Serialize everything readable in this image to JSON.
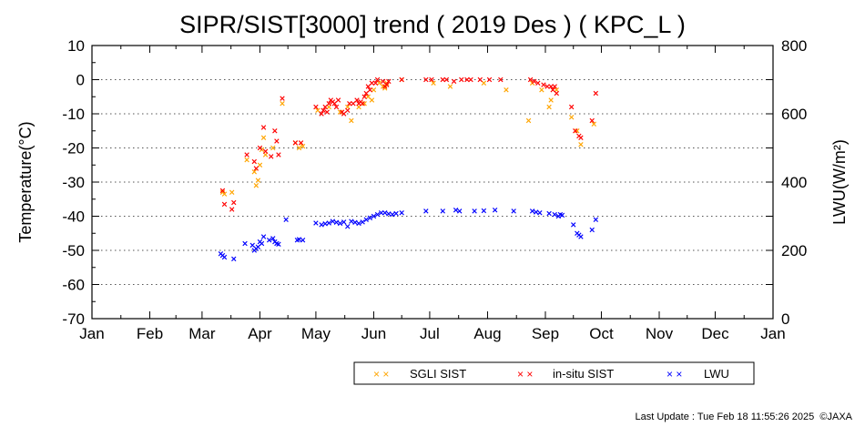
{
  "footer": {
    "prefix": "Last Update : ",
    "timestamp": "Tue Feb 18 11:55:26 2025",
    "credit": "©JAXA"
  },
  "chart_data": {
    "type": "scatter",
    "title": "SIPR/SIST[3000] trend ( 2019 Des ) ( KPC_L )",
    "ylabel": "Temperature(°C)",
    "ylabel_right": "LWU(W/m²)",
    "xlabel": "",
    "x_ticklabels": [
      "Jan",
      "Feb",
      "Mar",
      "Apr",
      "May",
      "Jun",
      "Jul",
      "Aug",
      "Sep",
      "Oct",
      "Nov",
      "Dec",
      "Jan"
    ],
    "ylim": [
      -70,
      10
    ],
    "yticks": [
      10,
      0,
      -10,
      -20,
      -30,
      -40,
      -50,
      -60,
      -70
    ],
    "ylim_right": [
      0,
      800
    ],
    "yticks_right": [
      800,
      600,
      400,
      200,
      0
    ],
    "grid": "dotted horizontal",
    "legend_position": "bottom-center",
    "colors": {
      "sgli": "#ffa500",
      "insitu": "#ff0000",
      "lwu": "#0000ff"
    },
    "series": [
      {
        "name": "SGLI SIST",
        "marker": "×",
        "color": "#ffa500",
        "axis": "left",
        "points": [
          [
            "2019-03-12",
            -33
          ],
          [
            "2019-03-13",
            -33.5
          ],
          [
            "2019-03-17",
            -33
          ],
          [
            "2019-03-25",
            -23.5
          ],
          [
            "2019-03-29",
            -27
          ],
          [
            "2019-03-30",
            -31
          ],
          [
            "2019-03-31",
            -29.5
          ],
          [
            "2019-04-01",
            -25
          ],
          [
            "2019-04-02",
            -20.5
          ],
          [
            "2019-04-03",
            -17
          ],
          [
            "2019-04-04",
            -22
          ],
          [
            "2019-04-08",
            -20
          ],
          [
            "2019-04-13",
            -7
          ],
          [
            "2019-04-20",
            -18.5
          ],
          [
            "2019-04-22",
            -20
          ],
          [
            "2019-04-24",
            -19.5
          ],
          [
            "2019-05-02",
            -9
          ],
          [
            "2019-05-08",
            -8
          ],
          [
            "2019-05-14",
            -9.5
          ],
          [
            "2019-05-18",
            -8
          ],
          [
            "2019-05-20",
            -12
          ],
          [
            "2019-05-24",
            -8
          ],
          [
            "2019-05-27",
            -7
          ],
          [
            "2019-05-29",
            -5
          ],
          [
            "2019-05-31",
            -6
          ],
          [
            "2019-06-01",
            -3
          ],
          [
            "2019-06-04",
            -1
          ],
          [
            "2019-06-06",
            -2
          ],
          [
            "2019-06-07",
            -2.5
          ],
          [
            "2019-06-08",
            -1
          ],
          [
            "2019-06-16",
            0
          ],
          [
            "2019-07-03",
            -1
          ],
          [
            "2019-07-12",
            -2
          ],
          [
            "2019-07-30",
            -1
          ],
          [
            "2019-08-11",
            -3
          ],
          [
            "2019-08-23",
            -12
          ],
          [
            "2019-08-25",
            -1
          ],
          [
            "2019-08-30",
            -3
          ],
          [
            "2019-09-03",
            -8
          ],
          [
            "2019-09-04",
            -6
          ],
          [
            "2019-09-07",
            -3
          ],
          [
            "2019-09-15",
            -11
          ],
          [
            "2019-09-18",
            -15
          ],
          [
            "2019-09-20",
            -19
          ],
          [
            "2019-09-27",
            -13
          ]
        ]
      },
      {
        "name": "in-situ SIST",
        "marker": "×",
        "color": "#ff0000",
        "axis": "left",
        "points": [
          [
            "2019-03-12",
            -32.5
          ],
          [
            "2019-03-13",
            -36.5
          ],
          [
            "2019-03-17",
            -38
          ],
          [
            "2019-03-18",
            -36
          ],
          [
            "2019-03-25",
            -22
          ],
          [
            "2019-03-29",
            -24
          ],
          [
            "2019-03-30",
            -26
          ],
          [
            "2019-04-01",
            -20
          ],
          [
            "2019-04-03",
            -14
          ],
          [
            "2019-04-04",
            -21
          ],
          [
            "2019-04-07",
            -22.5
          ],
          [
            "2019-04-09",
            -15
          ],
          [
            "2019-04-10",
            -18
          ],
          [
            "2019-04-11",
            -22
          ],
          [
            "2019-04-13",
            -5.5
          ],
          [
            "2019-04-20",
            -18.5
          ],
          [
            "2019-04-23",
            -18.5
          ],
          [
            "2019-05-01",
            -8
          ],
          [
            "2019-05-04",
            -10
          ],
          [
            "2019-05-05",
            -9
          ],
          [
            "2019-05-06",
            -8
          ],
          [
            "2019-05-07",
            -9.5
          ],
          [
            "2019-05-08",
            -7
          ],
          [
            "2019-05-09",
            -6
          ],
          [
            "2019-05-10",
            -6.5
          ],
          [
            "2019-05-11",
            -7
          ],
          [
            "2019-05-12",
            -8
          ],
          [
            "2019-05-13",
            -6
          ],
          [
            "2019-05-15",
            -9.5
          ],
          [
            "2019-05-16",
            -10
          ],
          [
            "2019-05-18",
            -9
          ],
          [
            "2019-05-19",
            -7
          ],
          [
            "2019-05-21",
            -7
          ],
          [
            "2019-05-23",
            -6
          ],
          [
            "2019-05-24",
            -7
          ],
          [
            "2019-05-25",
            -6.5
          ],
          [
            "2019-05-26",
            -7
          ],
          [
            "2019-05-27",
            -5
          ],
          [
            "2019-05-28",
            -4
          ],
          [
            "2019-05-29",
            -2
          ],
          [
            "2019-05-30",
            -3
          ],
          [
            "2019-05-31",
            -1
          ],
          [
            "2019-06-02",
            -1
          ],
          [
            "2019-06-03",
            0
          ],
          [
            "2019-06-06",
            -0.5
          ],
          [
            "2019-06-07",
            -2
          ],
          [
            "2019-06-08",
            -1.5
          ],
          [
            "2019-06-09",
            -0.5
          ],
          [
            "2019-06-16",
            0
          ],
          [
            "2019-06-29",
            0
          ],
          [
            "2019-07-02",
            0
          ],
          [
            "2019-07-08",
            0
          ],
          [
            "2019-07-10",
            0
          ],
          [
            "2019-07-14",
            -0.5
          ],
          [
            "2019-07-18",
            0
          ],
          [
            "2019-07-21",
            0
          ],
          [
            "2019-07-23",
            0
          ],
          [
            "2019-07-28",
            0
          ],
          [
            "2019-08-02",
            0
          ],
          [
            "2019-08-08",
            0
          ],
          [
            "2019-08-24",
            0
          ],
          [
            "2019-08-26",
            -0.5
          ],
          [
            "2019-08-28",
            -1
          ],
          [
            "2019-08-31",
            -1.5
          ],
          [
            "2019-09-02",
            -2
          ],
          [
            "2019-09-04",
            -2
          ],
          [
            "2019-09-05",
            -3
          ],
          [
            "2019-09-06",
            -2
          ],
          [
            "2019-09-07",
            -4
          ],
          [
            "2019-09-15",
            -8
          ],
          [
            "2019-09-17",
            -15
          ],
          [
            "2019-09-19",
            -16.5
          ],
          [
            "2019-09-20",
            -17
          ],
          [
            "2019-09-26",
            -12
          ],
          [
            "2019-09-28",
            -4
          ]
        ]
      },
      {
        "name": "LWU",
        "marker": "×",
        "color": "#0000ff",
        "axis": "right",
        "points": [
          [
            "2019-03-11",
            190
          ],
          [
            "2019-03-12",
            185
          ],
          [
            "2019-03-13",
            180
          ],
          [
            "2019-03-18",
            175
          ],
          [
            "2019-03-24",
            220
          ],
          [
            "2019-03-28",
            215
          ],
          [
            "2019-03-29",
            200
          ],
          [
            "2019-03-30",
            205
          ],
          [
            "2019-03-31",
            210
          ],
          [
            "2019-04-01",
            225
          ],
          [
            "2019-04-02",
            220
          ],
          [
            "2019-04-03",
            240
          ],
          [
            "2019-04-06",
            230
          ],
          [
            "2019-04-08",
            235
          ],
          [
            "2019-04-09",
            225
          ],
          [
            "2019-04-10",
            220
          ],
          [
            "2019-04-11",
            218
          ],
          [
            "2019-04-15",
            290
          ],
          [
            "2019-04-21",
            230
          ],
          [
            "2019-04-22",
            232
          ],
          [
            "2019-04-24",
            230
          ],
          [
            "2019-05-01",
            280
          ],
          [
            "2019-05-04",
            275
          ],
          [
            "2019-05-06",
            278
          ],
          [
            "2019-05-08",
            280
          ],
          [
            "2019-05-10",
            285
          ],
          [
            "2019-05-12",
            282
          ],
          [
            "2019-05-14",
            279
          ],
          [
            "2019-05-16",
            283
          ],
          [
            "2019-05-18",
            270
          ],
          [
            "2019-05-20",
            285
          ],
          [
            "2019-05-22",
            282
          ],
          [
            "2019-05-24",
            279
          ],
          [
            "2019-05-26",
            283
          ],
          [
            "2019-05-28",
            290
          ],
          [
            "2019-05-30",
            295
          ],
          [
            "2019-06-01",
            300
          ],
          [
            "2019-06-03",
            305
          ],
          [
            "2019-06-05",
            310
          ],
          [
            "2019-06-07",
            310
          ],
          [
            "2019-06-09",
            307
          ],
          [
            "2019-06-11",
            305
          ],
          [
            "2019-06-13",
            308
          ],
          [
            "2019-06-16",
            310
          ],
          [
            "2019-06-29",
            315
          ],
          [
            "2019-07-08",
            315
          ],
          [
            "2019-07-15",
            318
          ],
          [
            "2019-07-17",
            315
          ],
          [
            "2019-07-25",
            315
          ],
          [
            "2019-07-30",
            316
          ],
          [
            "2019-08-05",
            318
          ],
          [
            "2019-08-15",
            315
          ],
          [
            "2019-08-25",
            315
          ],
          [
            "2019-08-27",
            312
          ],
          [
            "2019-08-29",
            310
          ],
          [
            "2019-09-03",
            308
          ],
          [
            "2019-09-06",
            305
          ],
          [
            "2019-09-08",
            300
          ],
          [
            "2019-09-09",
            305
          ],
          [
            "2019-09-10",
            303
          ],
          [
            "2019-09-16",
            275
          ],
          [
            "2019-09-18",
            250
          ],
          [
            "2019-09-19",
            245
          ],
          [
            "2019-09-20",
            240
          ],
          [
            "2019-09-26",
            260
          ],
          [
            "2019-09-28",
            290
          ]
        ]
      }
    ]
  }
}
